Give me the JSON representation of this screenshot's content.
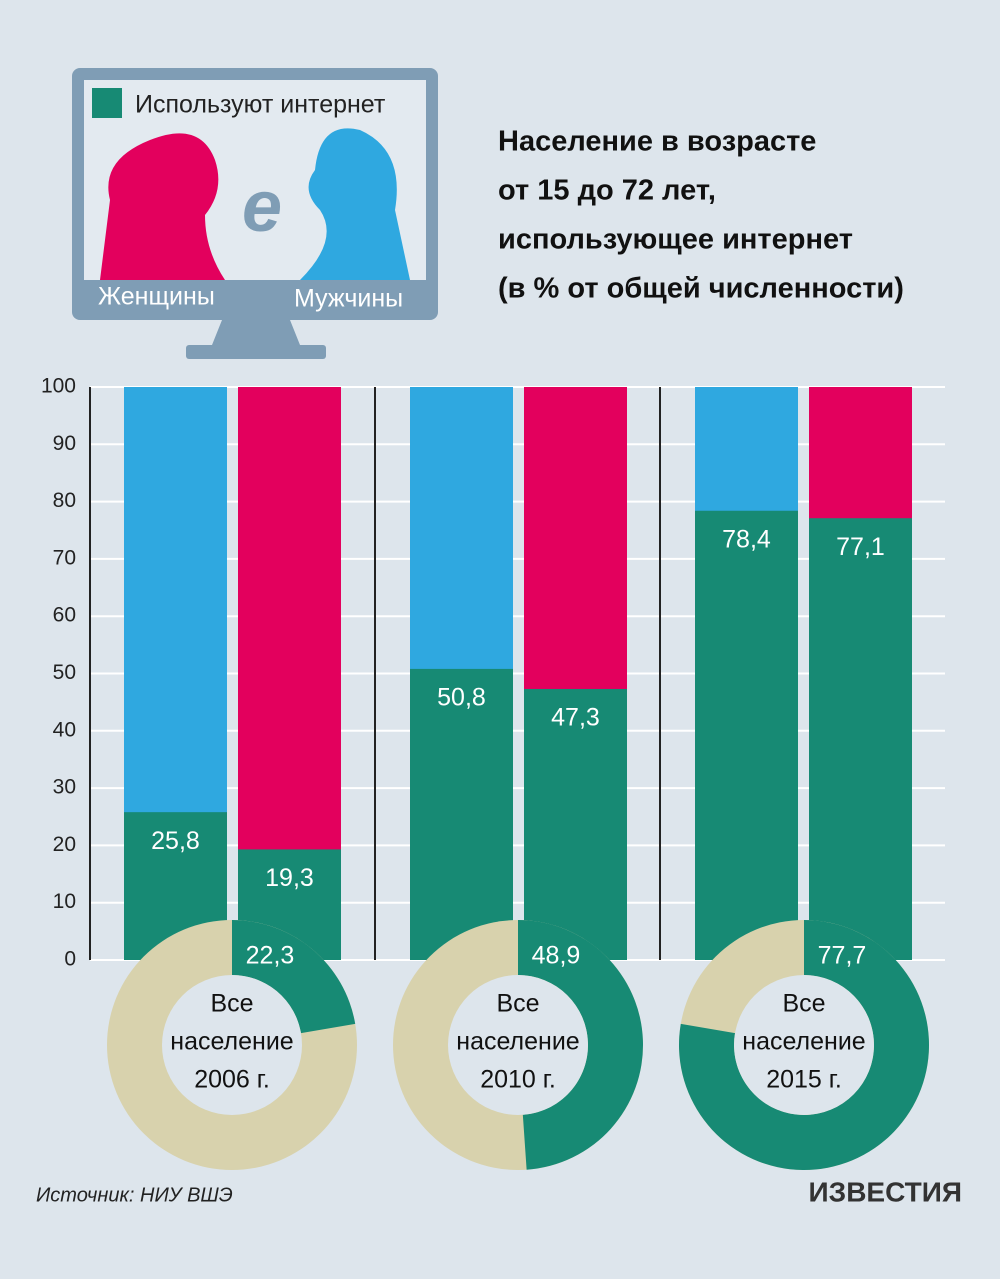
{
  "chart_data": {
    "type": "bar",
    "title_lines": [
      "Население в возрасте",
      "от 15 до 72 лет,",
      "использующее интернет",
      "(в % от общей численности)"
    ],
    "legend_label": "Используют интернет",
    "used_color": "#178a74",
    "series": [
      {
        "name": "Мужчины",
        "color": "#2fa8e0",
        "values": [
          25.8,
          50.8,
          78.4
        ],
        "value_labels": [
          "25,8",
          "50,8",
          "78,4"
        ]
      },
      {
        "name": "Женщины",
        "color": "#e3005d",
        "values": [
          19.3,
          47.3,
          77.1
        ],
        "value_labels": [
          "19,3",
          "47,3",
          "77,1"
        ]
      }
    ],
    "ylim": [
      0,
      100
    ],
    "yticks": [
      0,
      10,
      20,
      30,
      40,
      50,
      60,
      70,
      80,
      90,
      100
    ],
    "grid": true,
    "donuts": [
      {
        "label_lines": [
          "Все",
          "население",
          "2006 г."
        ],
        "value": 22.3,
        "value_label": "22,3"
      },
      {
        "label_lines": [
          "Все",
          "население",
          "2010 г."
        ],
        "value": 48.9,
        "value_label": "48,9"
      },
      {
        "label_lines": [
          "Все",
          "население",
          "2015 г."
        ],
        "value": 77.7,
        "value_label": "77,7"
      }
    ],
    "donut_rest_color": "#d8d2ad",
    "source": "Источник: НИУ ВШЭ",
    "logo": "ИЗВЕСТИЯ"
  }
}
